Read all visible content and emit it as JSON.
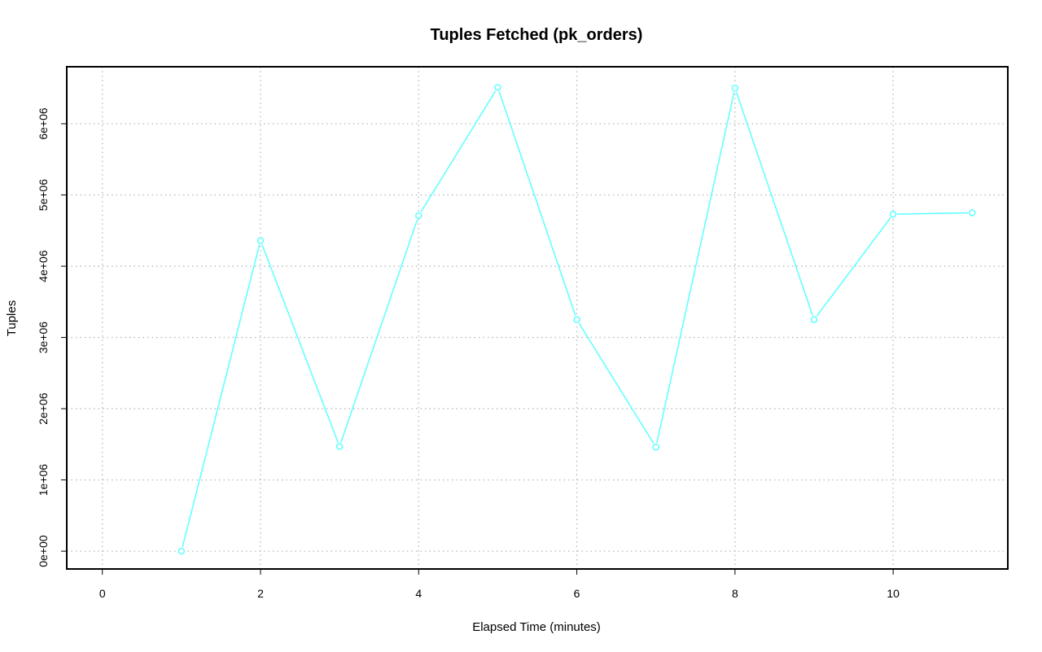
{
  "chart_data": {
    "type": "line",
    "title": "Tuples Fetched (pk_orders)",
    "xlabel": "Elapsed Time (minutes)",
    "ylabel": "Tuples",
    "xlim": [
      -0.45,
      11.45
    ],
    "ylim": [
      -250000,
      6800000
    ],
    "x_ticks": [
      0,
      2,
      4,
      6,
      8,
      10
    ],
    "x_tick_labels": [
      "0",
      "2",
      "4",
      "6",
      "8",
      "10"
    ],
    "y_ticks": [
      0,
      1000000,
      2000000,
      3000000,
      4000000,
      5000000,
      6000000
    ],
    "y_tick_labels": [
      "0e+00",
      "1e+06",
      "2e+06",
      "3e+06",
      "4e+06",
      "5e+06",
      "6e+06"
    ],
    "grid": true,
    "series": [
      {
        "color": "#66ffff",
        "x": [
          1,
          2,
          3,
          4,
          5,
          6,
          7,
          8,
          9,
          10,
          11
        ],
        "y": [
          0,
          4360000,
          1470000,
          4710000,
          6510000,
          3250000,
          1460000,
          6500000,
          3250000,
          4730000,
          4750000
        ]
      }
    ]
  }
}
